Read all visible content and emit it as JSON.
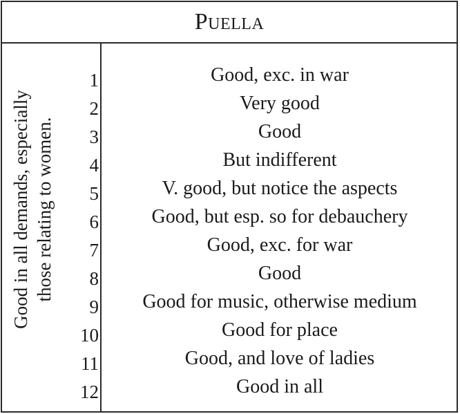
{
  "table": {
    "title": "Puella",
    "side_note": {
      "line1": "Good in all demands, especially",
      "line2": "those relating to women."
    },
    "rows": [
      {
        "num": "1",
        "text": "Good, exc. in war"
      },
      {
        "num": "2",
        "text": "Very good"
      },
      {
        "num": "3",
        "text": "Good"
      },
      {
        "num": "4",
        "text": "But indifferent"
      },
      {
        "num": "5",
        "text": "V. good, but notice the aspects"
      },
      {
        "num": "6",
        "text": "Good, but esp. so for debauchery"
      },
      {
        "num": "7",
        "text": "Good, exc. for war"
      },
      {
        "num": "8",
        "text": "Good"
      },
      {
        "num": "9",
        "text": "Good for music, otherwise medium"
      },
      {
        "num": "10",
        "text": "Good for place"
      },
      {
        "num": "11",
        "text": "Good, and love of ladies"
      },
      {
        "num": "12",
        "text": "Good in all"
      }
    ]
  }
}
